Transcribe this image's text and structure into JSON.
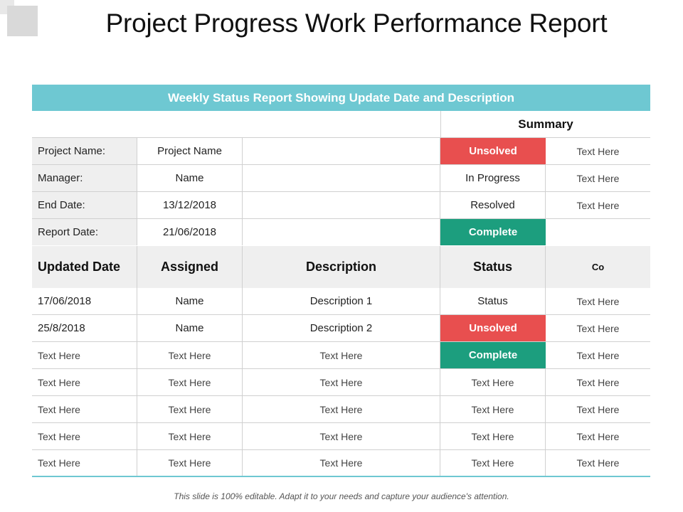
{
  "title": "Project Progress Work Performance Report",
  "banner": "Weekly Status Report Showing Update Date and Description",
  "summary": {
    "heading": "Summary",
    "rows": [
      {
        "status": "Unsolved",
        "note": "Text Here"
      },
      {
        "status": "In Progress",
        "note": "Text Here"
      },
      {
        "status": "Resolved",
        "note": "Text Here"
      },
      {
        "status": "Complete",
        "note": ""
      }
    ]
  },
  "project_info": [
    {
      "label": "Project Name:",
      "value": "Project Name"
    },
    {
      "label": "Manager:",
      "value": "Name"
    },
    {
      "label": "End Date:",
      "value": "13/12/2018"
    },
    {
      "label": "Report Date:",
      "value": "21/06/2018"
    }
  ],
  "table": {
    "headers": [
      "Updated Date",
      "Assigned",
      "Description",
      "Status",
      "Co"
    ],
    "rows": [
      [
        "17/06/2018",
        "Name",
        "Description 1",
        "Status",
        "Text Here"
      ],
      [
        "25/8/2018",
        "Name",
        "Description 2",
        "Unsolved",
        "Text Here"
      ],
      [
        "Text Here",
        "Text Here",
        "Text Here",
        "Complete",
        "Text Here"
      ],
      [
        "Text Here",
        "Text Here",
        "Text Here",
        "Text Here",
        "Text Here"
      ],
      [
        "Text Here",
        "Text Here",
        "Text Here",
        "Text Here",
        "Text Here"
      ],
      [
        "Text Here",
        "Text Here",
        "Text Here",
        "Text Here",
        "Text Here"
      ],
      [
        "Text Here",
        "Text Here",
        "Text Here",
        "Text Here",
        "Text Here"
      ]
    ]
  },
  "footer": "This slide is 100% editable. Adapt it to your needs and capture your audience's attention.",
  "colors": {
    "accent": "#6ec8d2",
    "unsolved": "#e84f4f",
    "complete": "#1c9e7e",
    "label_fill": "#efefef"
  }
}
